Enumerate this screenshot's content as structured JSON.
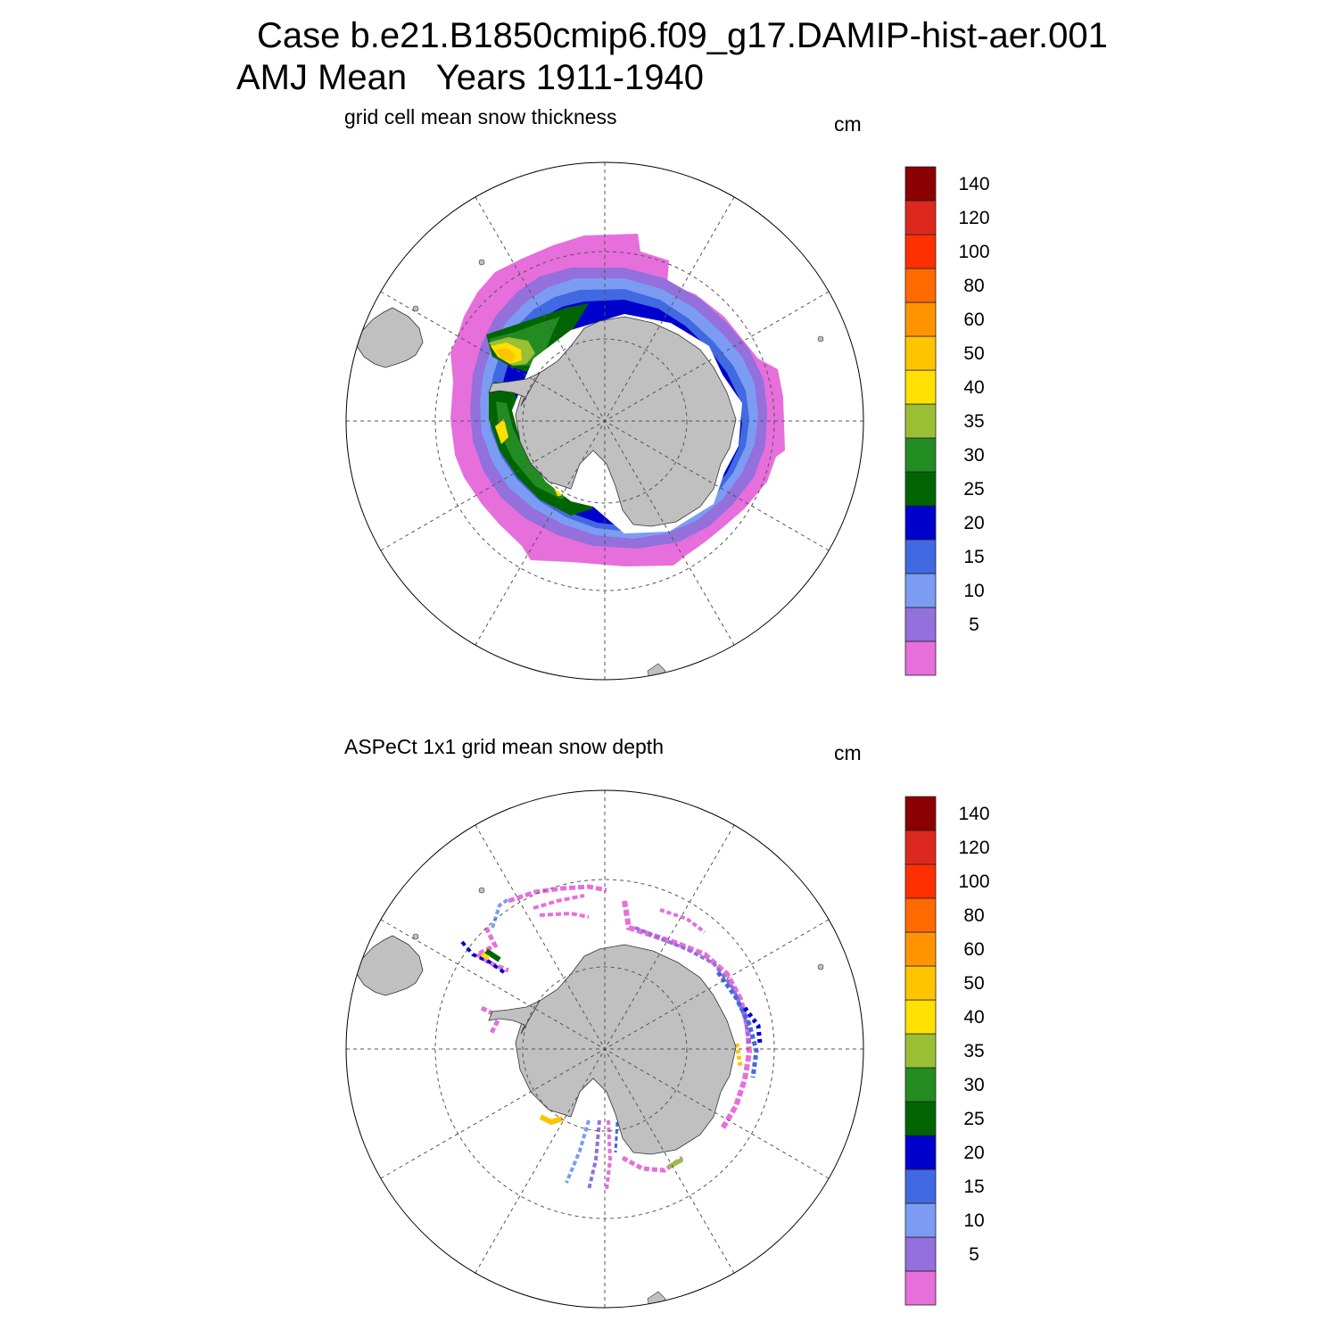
{
  "title": {
    "line1": "Case b.e21.B1850cmip6.f09_g17.DAMIP-hist-aer.001",
    "line2": "AMJ Mean   Years 1911-1940"
  },
  "panels": [
    {
      "subtitle": "grid cell mean snow thickness",
      "unit": "cm"
    },
    {
      "subtitle": "ASPeCt 1x1 grid mean snow depth",
      "unit": "cm"
    }
  ],
  "colorbar": {
    "labels": [
      "5",
      "10",
      "15",
      "20",
      "25",
      "30",
      "35",
      "40",
      "50",
      "60",
      "80",
      "100",
      "120",
      "140"
    ],
    "colors": [
      "#e66fdc",
      "#9370db",
      "#7b9cf2",
      "#4169e1",
      "#0000cd",
      "#006400",
      "#228b22",
      "#9abf35",
      "#ffe000",
      "#ffc400",
      "#ff9400",
      "#ff6a00",
      "#ff3000",
      "#dc281e",
      "#8b0000"
    ]
  },
  "map_style": {
    "land_color": "#c0c0c0",
    "ocean_color": "#ffffff",
    "grid_color": "#555555",
    "projection": "south polar stereographic"
  }
}
